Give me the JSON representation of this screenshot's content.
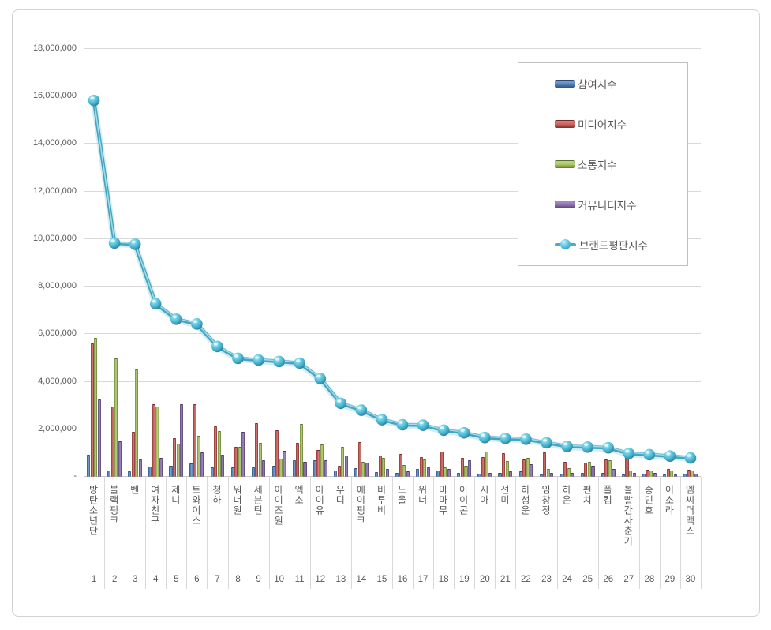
{
  "chart_data": {
    "type": "bar",
    "subtype": "clustered-bar-with-line-overlay",
    "title": "",
    "categories": [
      "방탄소년단",
      "블랙핑크",
      "벤",
      "여자친구",
      "제니",
      "트와이스",
      "청하",
      "워너원",
      "세븐틴",
      "아이즈원",
      "엑소",
      "아이유",
      "우디",
      "에이핑크",
      "비투비",
      "노을",
      "위너",
      "마마무",
      "아이콘",
      "시아",
      "선미",
      "하성운",
      "임창정",
      "하은",
      "펀치",
      "폴킴",
      "볼빨간사춘기",
      "송민호",
      "이소라",
      "엠씨더맥스"
    ],
    "ranks": [
      "1",
      "2",
      "3",
      "4",
      "5",
      "6",
      "7",
      "8",
      "9",
      "10",
      "11",
      "12",
      "13",
      "14",
      "15",
      "16",
      "17",
      "18",
      "19",
      "20",
      "21",
      "22",
      "23",
      "24",
      "25",
      "26",
      "27",
      "28",
      "29",
      "30"
    ],
    "series": [
      {
        "name": "참여지수",
        "type": "bar",
        "color": "#4F81BD",
        "values": [
          910000,
          250000,
          190000,
          400000,
          440000,
          520000,
          360000,
          380000,
          380000,
          450000,
          660000,
          660000,
          250000,
          330000,
          170000,
          140000,
          310000,
          250000,
          150000,
          100000,
          150000,
          200000,
          80000,
          100000,
          150000,
          120000,
          80000,
          100000,
          60000,
          100000
        ]
      },
      {
        "name": "미디어지수",
        "type": "bar",
        "color": "#C0504D",
        "values": [
          5580000,
          2940000,
          1870000,
          3010000,
          1600000,
          3030000,
          2100000,
          1240000,
          2220000,
          1930000,
          1410000,
          1110000,
          450000,
          1430000,
          880000,
          930000,
          800000,
          1040000,
          750000,
          810000,
          980000,
          700000,
          1000000,
          600000,
          550000,
          710000,
          800000,
          270000,
          300000,
          280000
        ]
      },
      {
        "name": "소통지수",
        "type": "bar",
        "color": "#9BBB59",
        "values": [
          5810000,
          4950000,
          4500000,
          2940000,
          1350000,
          1710000,
          1910000,
          1220000,
          1390000,
          720000,
          2210000,
          1320000,
          1240000,
          600000,
          770000,
          470000,
          710000,
          360000,
          450000,
          1040000,
          640000,
          780000,
          300000,
          350000,
          600000,
          670000,
          250000,
          220000,
          250000,
          230000
        ]
      },
      {
        "name": "커뮤니티지수",
        "type": "bar",
        "color": "#8064A2",
        "values": [
          3230000,
          1470000,
          690000,
          770000,
          3010000,
          990000,
          910000,
          1870000,
          670000,
          1050000,
          600000,
          670000,
          880000,
          550000,
          300000,
          190000,
          360000,
          310000,
          650000,
          150000,
          200000,
          500000,
          120000,
          120000,
          450000,
          300000,
          120000,
          120000,
          80000,
          100000
        ]
      },
      {
        "name": "브랜드평판지수",
        "type": "line",
        "color": "#4BACC6",
        "values": [
          15800000,
          9800000,
          9750000,
          7250000,
          6600000,
          6400000,
          5450000,
          4950000,
          4880000,
          4820000,
          4750000,
          4100000,
          3060000,
          2770000,
          2370000,
          2160000,
          2140000,
          1930000,
          1820000,
          1620000,
          1580000,
          1550000,
          1400000,
          1250000,
          1220000,
          1190000,
          950000,
          900000,
          840000,
          760000
        ]
      }
    ],
    "y_axis": {
      "min": 0,
      "max": 18000000,
      "step": 2000000,
      "tick_labels": [
        "18,000,000",
        "16,000,000",
        "14,000,000",
        "12,000,000",
        "10,000,000",
        "8,000,000",
        "6,000,000",
        "4,000,000",
        "2,000,000",
        "-"
      ]
    },
    "grid": true,
    "legend_position": "top-right",
    "text_color": "#595959"
  }
}
